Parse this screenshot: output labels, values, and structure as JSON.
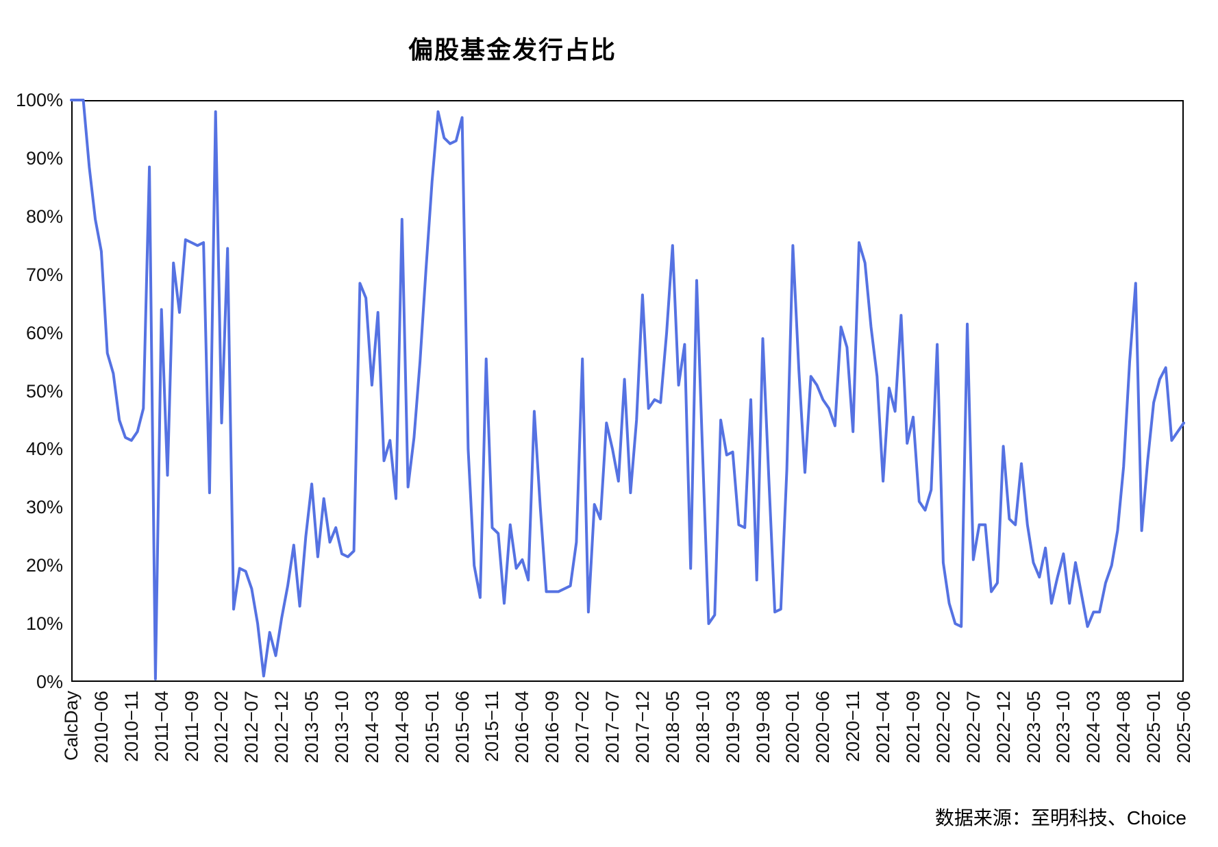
{
  "title": "偏股基金发行占比",
  "source_note": "数据来源：至明科技、Choice",
  "chart_data": {
    "type": "line",
    "title": "偏股基金发行占比",
    "x_axis_name": "CalcDay",
    "x_tick_interval": 5,
    "n_points": 186,
    "x_tick_labels": [
      "CalcDay",
      "2010−06",
      "2010−11",
      "2011−04",
      "2011−09",
      "2012−02",
      "2012−07",
      "2012−12",
      "2013−05",
      "2013−10",
      "2014−03",
      "2014−08",
      "2015−01",
      "2015−06",
      "2015−11",
      "2016−04",
      "2016−09",
      "2017−02",
      "2017−07",
      "2017−12",
      "2018−05",
      "2018−10",
      "2019−03",
      "2019−08",
      "2020−01",
      "2020−06",
      "2020−11",
      "2021−04",
      "2021−09",
      "2022−02",
      "2022−07",
      "2022−12",
      "2023−05",
      "2023−10",
      "2024−03",
      "2024−08",
      "2025−01",
      "2025−06"
    ],
    "y_tick_labels": [
      "0%",
      "10%",
      "20%",
      "30%",
      "40%",
      "50%",
      "60%",
      "70%",
      "80%",
      "90%",
      "100%"
    ],
    "ylim": [
      0,
      100
    ],
    "grid": false,
    "legend_position": "none",
    "line_color": "#5572E2",
    "frame_color": "#000000",
    "values_unit": "percent",
    "values": [
      100,
      100,
      100,
      88.5,
      79.5,
      74,
      56.5,
      53,
      45,
      42,
      41.5,
      43,
      47,
      88.5,
      0.5,
      64,
      35.5,
      72,
      63.5,
      76,
      75.5,
      75,
      75.5,
      32.5,
      98,
      44.5,
      74.5,
      12.5,
      19.5,
      19,
      16,
      10,
      1,
      8.5,
      4.5,
      11,
      16.5,
      23.5,
      13,
      25,
      34,
      21.5,
      31.5,
      24,
      26.5,
      22,
      21.5,
      22.5,
      68.5,
      66,
      51,
      63.5,
      38,
      41.5,
      31.5,
      79.5,
      33.5,
      42,
      55,
      71,
      86,
      98,
      93.5,
      92.5,
      93,
      97,
      40,
      20,
      14.5,
      55.5,
      26.5,
      25.5,
      13.5,
      27,
      19.5,
      21,
      17.5,
      46.5,
      30,
      15.5,
      15.5,
      15.5,
      16,
      16.5,
      24,
      55.5,
      12,
      30.5,
      28,
      44.5,
      40,
      34.5,
      52,
      32.5,
      45,
      66.5,
      47,
      48.5,
      48,
      60,
      75,
      51,
      58,
      19.5,
      69,
      39,
      10,
      11.5,
      45,
      39,
      39.5,
      27,
      26.5,
      48.5,
      17.5,
      59,
      35,
      12,
      12.5,
      36.5,
      75,
      53.5,
      36,
      52.5,
      51,
      48.5,
      47,
      44,
      61,
      57.5,
      43,
      75.5,
      72,
      61,
      52.5,
      34.5,
      50.5,
      46.5,
      63,
      41,
      45.5,
      31,
      29.5,
      33,
      58,
      20.5,
      13.5,
      10,
      9.5,
      61.5,
      21,
      27,
      27,
      15.5,
      17,
      40.5,
      28,
      27,
      37.5,
      27,
      20.5,
      18,
      23,
      13.5,
      18,
      22,
      13.5,
      20.5,
      15,
      9.5,
      12,
      12,
      17,
      20,
      26,
      37,
      55,
      68.5,
      26,
      38,
      48,
      52,
      54,
      41.5,
      43,
      44.5
    ]
  }
}
